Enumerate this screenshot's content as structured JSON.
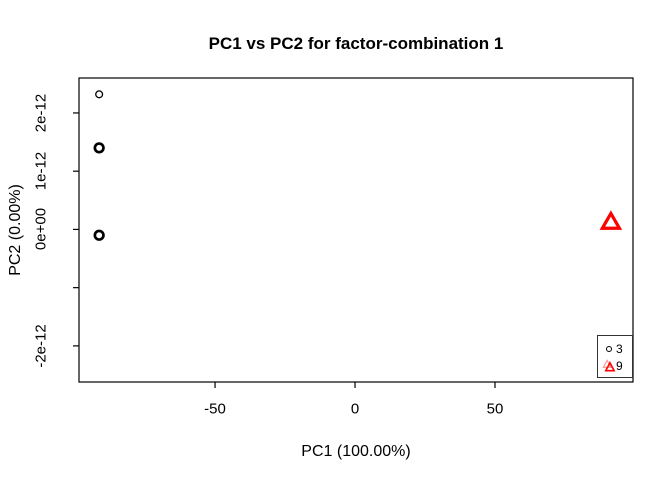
{
  "chart_data": {
    "type": "scatter",
    "title": "PC1 vs PC2 for factor-combination 1",
    "xlabel": "PC1 (100.00%)",
    "ylabel": "PC2 (0.00%)",
    "xlim": [
      -98.6,
      99.3
    ],
    "ylim": [
      -2.62e-12,
      2.6e-12
    ],
    "grid": false,
    "axis_color": "#000000",
    "x_ticks": [
      {
        "value": -50,
        "label": "-50"
      },
      {
        "value": 0,
        "label": "0"
      },
      {
        "value": 50,
        "label": "50"
      }
    ],
    "y_ticks": [
      {
        "value": 2e-12,
        "label": "2e-12"
      },
      {
        "value": 1e-12,
        "label": "1e-12"
      },
      {
        "value": 0,
        "label": "0e+00"
      },
      {
        "value": -1e-12,
        "label": ""
      },
      {
        "value": -2e-12,
        "label": "-2e-12"
      }
    ],
    "series": [
      {
        "name": "3",
        "marker": "circle",
        "color": "#000000",
        "points": [
          {
            "x": -91.4,
            "y": 2.32e-12,
            "r": 3.4,
            "sw": 1.3
          },
          {
            "x": -91.4,
            "y": 1.4e-12,
            "r": 4.3,
            "sw": 2.7
          },
          {
            "x": -91.4,
            "y": -1e-13,
            "r": 4.3,
            "sw": 2.7
          }
        ]
      },
      {
        "name": "9",
        "marker": "triangle",
        "color": "#ff0000",
        "points": [
          {
            "x": 91.4,
            "y": 1.2e-13,
            "r": 9,
            "sw": 3.2
          }
        ]
      }
    ],
    "legend": {
      "position": "bottomright",
      "entries": [
        {
          "label": "3",
          "symbol": "circle",
          "color": "#000000"
        },
        {
          "label": "9",
          "symbol": "triangle-double",
          "color": "#ff0000",
          "ghost_color": "#ff9999"
        }
      ]
    }
  }
}
